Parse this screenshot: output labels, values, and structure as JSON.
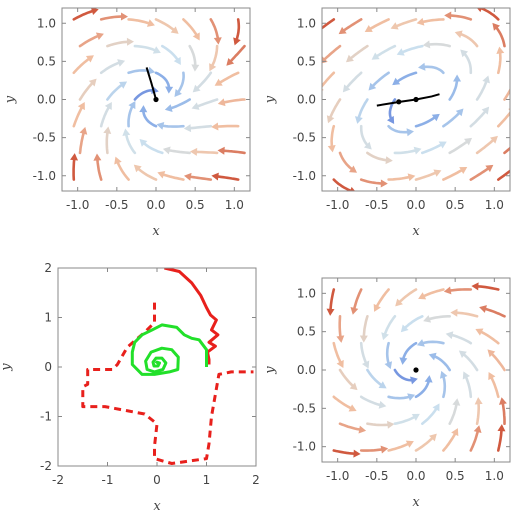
{
  "chart_data": [
    {
      "type": "streamplot",
      "xlabel": "x",
      "ylabel": "y",
      "xlim": [
        -1.2,
        1.2
      ],
      "ylim": [
        -1.2,
        1.2
      ],
      "xticks": [
        -1.0,
        -0.5,
        0.0,
        0.5,
        1.0
      ],
      "yticks": [
        -1.0,
        -0.5,
        0.0,
        0.5,
        1.0
      ],
      "xtick_labels": [
        "-1.0",
        "-0.5",
        "0.0",
        "0.5",
        "1.0"
      ],
      "ytick_labels": [
        "-1.0",
        "-0.5",
        "0.0",
        "0.5",
        "1.0"
      ],
      "color_scale": [
        "#2f45c9",
        "#8fb3e8",
        "#cde2ee",
        "#f2c4a7",
        "#d0593f"
      ],
      "highlight_curve": {
        "color": "#000000",
        "points": [
          [
            -0.12,
            0.42
          ],
          [
            -0.06,
            0.22
          ],
          [
            0.0,
            0.0
          ]
        ]
      },
      "fixed_points": [
        [
          0.0,
          0.0
        ]
      ]
    },
    {
      "type": "streamplot",
      "xlabel": "x",
      "ylabel": "y",
      "xlim": [
        -1.2,
        1.2
      ],
      "ylim": [
        -1.2,
        1.2
      ],
      "xticks": [
        -1.0,
        -0.5,
        0.0,
        0.5,
        1.0
      ],
      "yticks": [
        -1.0,
        -0.5,
        0.0,
        0.5,
        1.0
      ],
      "xtick_labels": [
        "-1.0",
        "-0.5",
        "0.0",
        "0.5",
        "1.0"
      ],
      "ytick_labels": [
        "-1.0",
        "-0.5",
        "0.0",
        "0.5",
        "1.0"
      ],
      "color_scale": [
        "#2f45c9",
        "#8fb3e8",
        "#cde2ee",
        "#f2c4a7",
        "#d0593f"
      ],
      "highlight_curve": {
        "color": "#000000",
        "points": [
          [
            -0.5,
            -0.08
          ],
          [
            -0.2,
            -0.03
          ],
          [
            0.0,
            0.0
          ],
          [
            0.2,
            0.04
          ],
          [
            0.3,
            0.07
          ]
        ]
      },
      "fixed_points": [
        [
          0.0,
          0.0
        ],
        [
          -0.22,
          -0.03
        ]
      ]
    },
    {
      "type": "line",
      "xlabel": "x",
      "ylabel": "y",
      "xlim": [
        -2,
        2
      ],
      "ylim": [
        -2,
        2
      ],
      "xticks": [
        -2,
        -1,
        0,
        1,
        2
      ],
      "yticks": [
        -2,
        -1,
        0,
        1,
        2
      ],
      "xtick_labels": [
        "-2",
        "-1",
        "0",
        "1",
        "2"
      ],
      "ytick_labels": [
        "-2",
        "-1",
        "0",
        "1",
        "2"
      ],
      "series": [
        {
          "color": "#e8201c",
          "style": "dashed",
          "points": [
            [
              -0.05,
              1.3
            ],
            [
              -0.05,
              0.9
            ],
            [
              -0.25,
              0.7
            ],
            [
              -0.6,
              0.4
            ],
            [
              -0.8,
              0.05
            ],
            [
              -0.9,
              -0.05
            ],
            [
              -1.4,
              -0.05
            ],
            [
              -1.4,
              -0.35
            ],
            [
              -1.5,
              -0.4
            ],
            [
              -1.5,
              -0.8
            ],
            [
              -1.05,
              -0.8
            ],
            [
              -0.25,
              -0.95
            ],
            [
              0.0,
              -1.15
            ],
            [
              -0.05,
              -1.6
            ],
            [
              -0.05,
              -1.85
            ],
            [
              0.3,
              -1.95
            ],
            [
              1.0,
              -1.85
            ],
            [
              1.05,
              -1.55
            ],
            [
              1.1,
              -1.0
            ],
            [
              1.25,
              -0.15
            ],
            [
              1.5,
              -0.1
            ],
            [
              1.95,
              -0.1
            ]
          ]
        },
        {
          "color": "#e8201c",
          "style": "solid",
          "points": [
            [
              0.15,
              2.0
            ],
            [
              0.45,
              1.93
            ],
            [
              0.7,
              1.7
            ],
            [
              0.88,
              1.45
            ],
            [
              1.0,
              1.2
            ],
            [
              1.08,
              1.05
            ],
            [
              1.2,
              0.95
            ],
            [
              1.1,
              0.75
            ],
            [
              1.23,
              0.65
            ],
            [
              1.05,
              0.5
            ],
            [
              1.18,
              0.42
            ],
            [
              1.02,
              0.3
            ],
            [
              1.05,
              0.15
            ],
            [
              1.05,
              0.05
            ]
          ]
        },
        {
          "color": "#22e02a",
          "style": "solid",
          "points": [
            [
              1.0,
              0.0
            ],
            [
              1.0,
              0.35
            ],
            [
              0.85,
              0.55
            ],
            [
              0.7,
              0.58
            ],
            [
              0.55,
              0.65
            ],
            [
              0.4,
              0.8
            ],
            [
              0.1,
              0.85
            ],
            [
              -0.1,
              0.75
            ],
            [
              -0.3,
              0.65
            ],
            [
              -0.45,
              0.5
            ],
            [
              -0.5,
              0.3
            ],
            [
              -0.5,
              0.05
            ],
            [
              -0.3,
              -0.15
            ],
            [
              -0.05,
              -0.15
            ],
            [
              0.25,
              -0.1
            ],
            [
              0.42,
              -0.05
            ],
            [
              0.43,
              0.2
            ],
            [
              0.3,
              0.35
            ],
            [
              0.1,
              0.38
            ],
            [
              -0.12,
              0.3
            ],
            [
              -0.23,
              0.12
            ],
            [
              -0.2,
              -0.05
            ],
            [
              -0.05,
              -0.1
            ],
            [
              0.12,
              -0.05
            ],
            [
              0.18,
              0.08
            ],
            [
              0.1,
              0.18
            ],
            [
              -0.02,
              0.18
            ],
            [
              -0.08,
              0.1
            ],
            [
              -0.06,
              0.02
            ],
            [
              0.02,
              0.02
            ],
            [
              0.05,
              0.08
            ],
            [
              0.0,
              0.1
            ],
            [
              -0.02,
              0.07
            ]
          ]
        }
      ]
    },
    {
      "type": "streamplot",
      "xlabel": "x",
      "ylabel": "y",
      "xlim": [
        -1.2,
        1.2
      ],
      "ylim": [
        -1.2,
        1.2
      ],
      "xticks": [
        -1.0,
        -0.5,
        0.0,
        0.5,
        1.0
      ],
      "yticks": [
        -1.0,
        -0.5,
        0.0,
        0.5,
        1.0
      ],
      "xtick_labels": [
        "-1.0",
        "-0.5",
        "0.0",
        "0.5",
        "1.0"
      ],
      "ytick_labels": [
        "-1.0",
        "-0.5",
        "0.0",
        "0.5",
        "1.0"
      ],
      "color_scale": [
        "#2f45c9",
        "#8fb3e8",
        "#cde2ee",
        "#f2c4a7",
        "#d0593f"
      ],
      "fixed_points": [
        [
          0.0,
          0.0
        ]
      ]
    }
  ]
}
